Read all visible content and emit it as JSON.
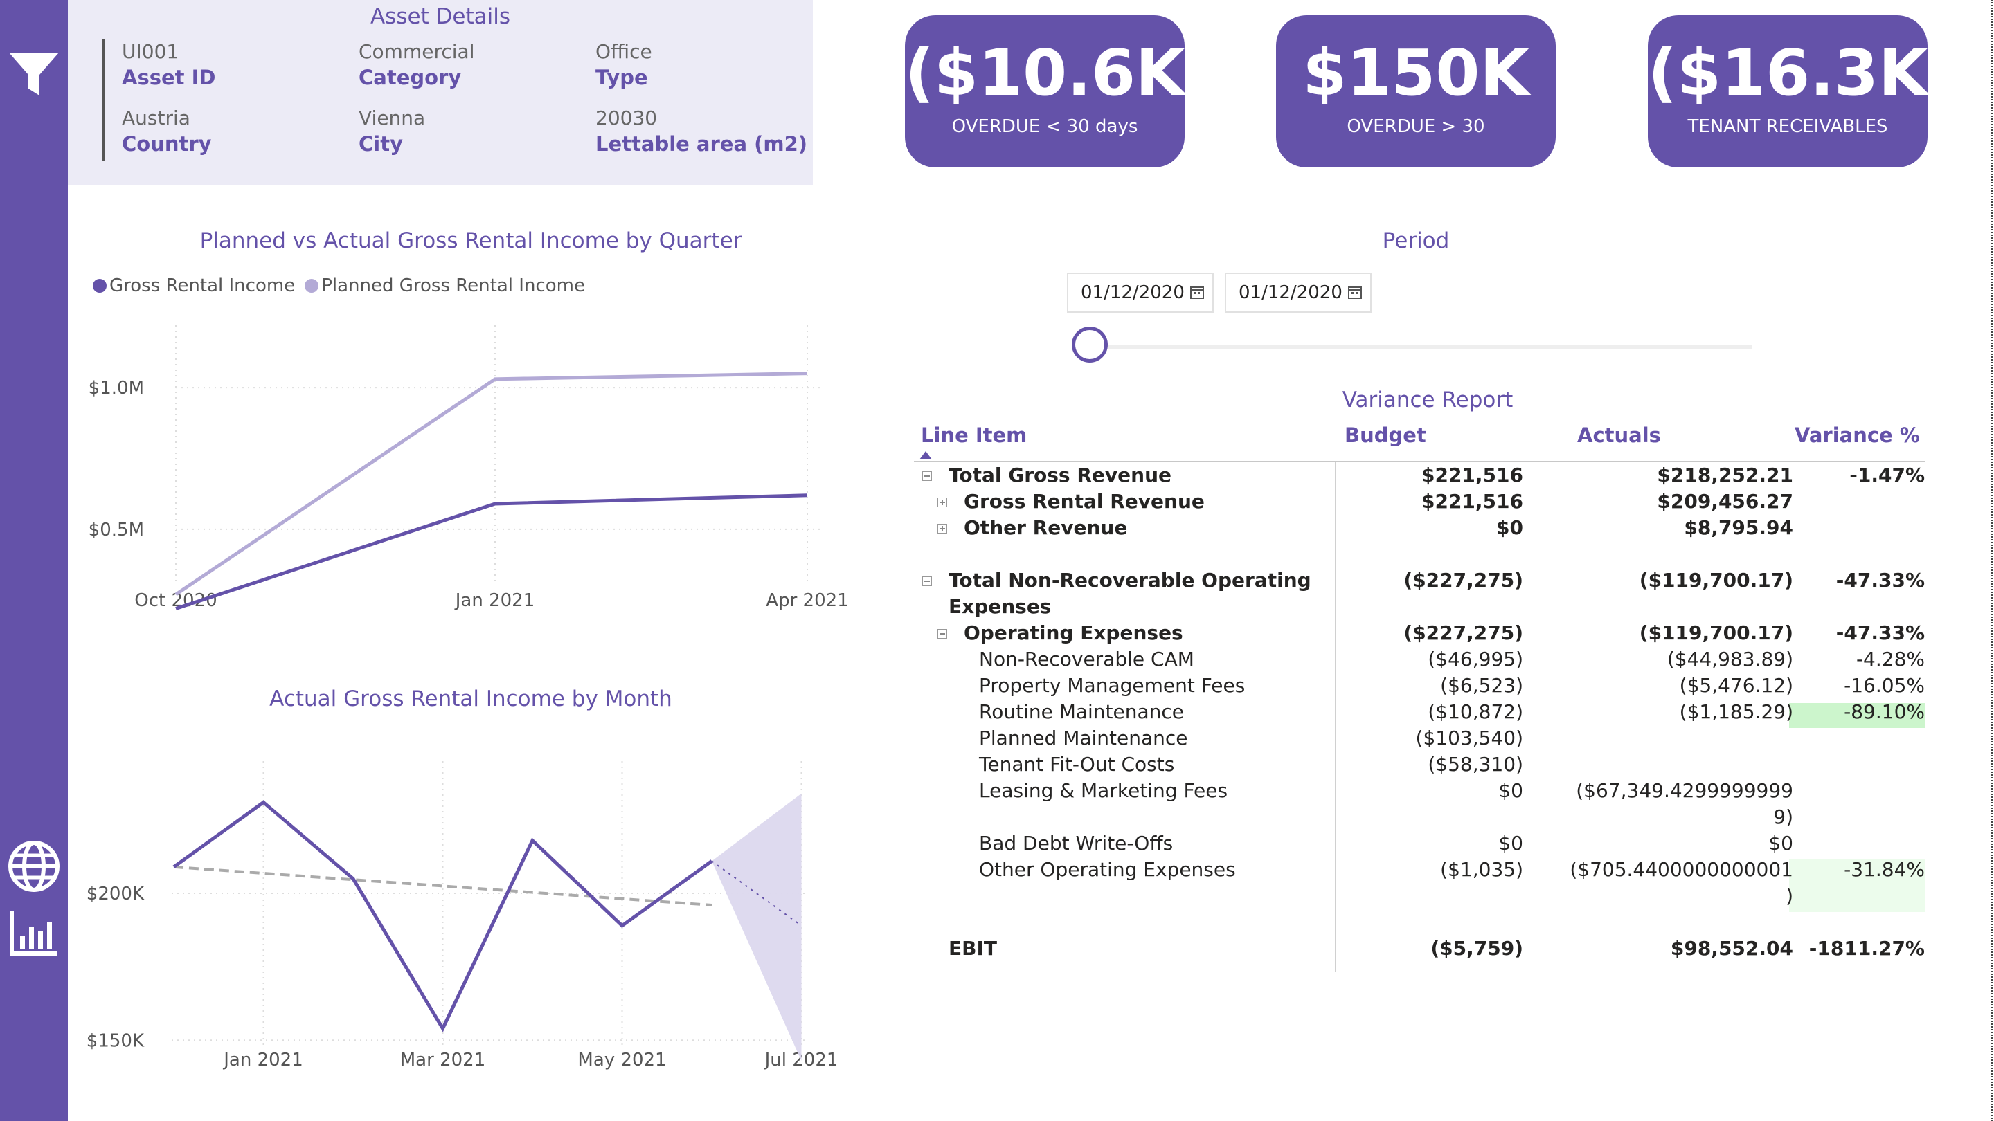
{
  "asset": {
    "title": "Asset Details",
    "cells": [
      {
        "value": "UI001",
        "label": "Asset ID"
      },
      {
        "value": "Commercial",
        "label": "Category"
      },
      {
        "value": "Office",
        "label": "Type"
      },
      {
        "value": "Austria",
        "label": "Country"
      },
      {
        "value": "Vienna",
        "label": "City"
      },
      {
        "value": "20030",
        "label": "Lettable area (m2)"
      }
    ]
  },
  "kpis": [
    {
      "value": "($10.6K)",
      "label": "OVERDUE < 30 days"
    },
    {
      "value": "$150K",
      "label": "OVERDUE > 30"
    },
    {
      "value": "($16.3K)",
      "label": "TENANT RECEIVABLES"
    }
  ],
  "colors": {
    "primary": "#6452a9",
    "light": "#b3aad6",
    "highlight_strong": "#ccf5cc",
    "highlight_soft": "#ecfcec"
  },
  "sidebar": {
    "icons": [
      "filter-icon",
      "globe-icon",
      "bar-chart-icon"
    ]
  },
  "chart_data": [
    {
      "type": "line",
      "title": "Planned vs Actual Gross Rental Income by Quarter",
      "categories": [
        "Oct 2020",
        "Jan 2021",
        "Apr 2021"
      ],
      "series": [
        {
          "name": "Gross Rental Income",
          "values": [
            0.22,
            0.59,
            0.62
          ],
          "color": "#6452a9"
        },
        {
          "name": "Planned Gross Rental Income",
          "values": [
            0.27,
            1.03,
            1.05
          ],
          "color": "#b3aad6"
        }
      ],
      "yticks": [
        {
          "v": 1.0,
          "label": "$1.0M"
        },
        {
          "v": 0.5,
          "label": "$0.5M"
        }
      ],
      "ylim": [
        0.17,
        1.22
      ],
      "legend": "top-left",
      "grid": true
    },
    {
      "type": "line",
      "title": "Actual Gross Rental Income by Month",
      "x_labels": [
        {
          "m": 1,
          "label": "Jan 2021"
        },
        {
          "m": 3,
          "label": "Mar 2021"
        },
        {
          "m": 5,
          "label": "May 2021"
        },
        {
          "m": 7,
          "label": "Jul 2021"
        }
      ],
      "series": [
        {
          "name": "",
          "x": [
            0,
            1,
            2,
            3,
            4,
            5,
            6
          ],
          "values": [
            209,
            231,
            205,
            154,
            218,
            189,
            211
          ],
          "color": "#6452a9"
        }
      ],
      "trend": {
        "x": [
          0,
          6
        ],
        "values": [
          209,
          196
        ],
        "color": "#aaaaaa"
      },
      "forecast": {
        "x": [
          6,
          7,
          7
        ],
        "values": [
          211,
          234,
          143
        ],
        "mid": 189
      },
      "yticks": [
        {
          "v": 200,
          "label": "$200K"
        },
        {
          "v": 150,
          "label": "$150K"
        }
      ],
      "ylim": [
        139,
        245
      ],
      "grid": true
    }
  ],
  "period": {
    "title": "Period",
    "start": "01/12/2020",
    "end": "01/12/2020"
  },
  "variance": {
    "title": "Variance Report",
    "headers": {
      "line_item": "Line Item",
      "budget": "Budget",
      "actuals": "Actuals",
      "variance": "Variance %"
    },
    "rows": [
      {
        "item": "Total Gross Revenue",
        "budget": "$221,516",
        "actuals": "$218,252.21",
        "variance": "-1.47%"
      },
      {
        "item": "Gross Rental Revenue",
        "budget": "$221,516",
        "actuals": "$209,456.27",
        "variance": ""
      },
      {
        "item": "Other Revenue",
        "budget": "$0",
        "actuals": "$8,795.94",
        "variance": ""
      },
      {
        "item": "Total Non-Recoverable Operating",
        "item2": "Expenses",
        "budget": "($227,275)",
        "actuals": "($119,700.17)",
        "variance": "-47.33%"
      },
      {
        "item": "Operating Expenses",
        "budget": "($227,275)",
        "actuals": "($119,700.17)",
        "variance": "-47.33%"
      },
      {
        "item": "Non-Recoverable CAM",
        "budget": "($46,995)",
        "actuals": "($44,983.89)",
        "variance": "-4.28%"
      },
      {
        "item": "Property Management Fees",
        "budget": "($6,523)",
        "actuals": "($5,476.12)",
        "variance": "-16.05%"
      },
      {
        "item": "Routine Maintenance",
        "budget": "($10,872)",
        "actuals": "($1,185.29)",
        "variance": "-89.10%"
      },
      {
        "item": "Planned Maintenance",
        "budget": "($103,540)",
        "actuals": "",
        "variance": ""
      },
      {
        "item": "Tenant Fit-Out Costs",
        "budget": "($58,310)",
        "actuals": "",
        "variance": ""
      },
      {
        "item": "Leasing & Marketing Fees",
        "budget": "$0",
        "actuals": "($67,349.4299999999",
        "actuals2": "9)",
        "variance": ""
      },
      {
        "item": "Bad Debt Write-Offs",
        "budget": "$0",
        "actuals": "$0",
        "variance": ""
      },
      {
        "item": "Other Operating Expenses",
        "budget": "($1,035)",
        "actuals": "($705.4400000000001",
        "actuals2": ")",
        "variance": "-31.84%"
      },
      {
        "item": "EBIT",
        "budget": "($5,759)",
        "actuals": "$98,552.04",
        "variance": "-1811.27%"
      }
    ]
  }
}
